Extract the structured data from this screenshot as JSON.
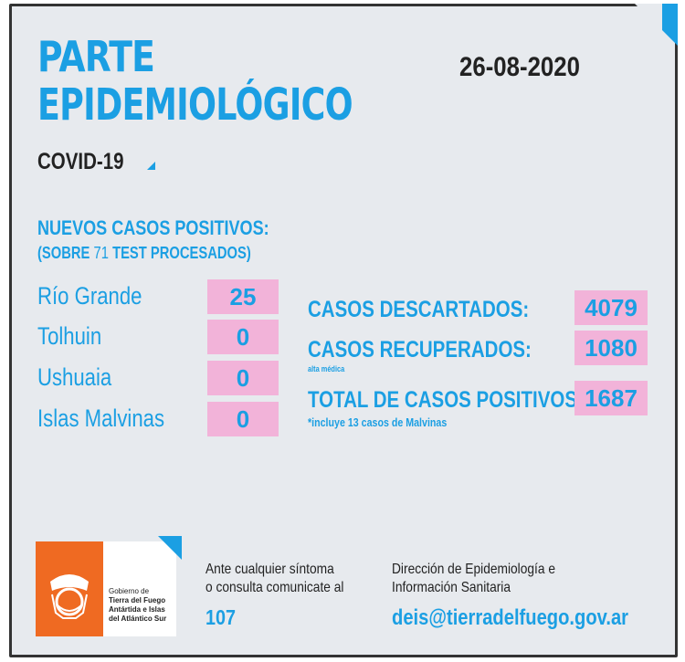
{
  "header": {
    "title_line1": "PARTE",
    "title_line2": "EPIDEMIOLÓGICO",
    "date": "26-08-2020",
    "subtitle": "COVID-19"
  },
  "nuevos": {
    "heading": "NUEVOS CASOS POSITIVOS:",
    "sub_prefix": "(SOBRE",
    "test_count": "71",
    "sub_suffix": "TEST PROCESADOS)",
    "rows": [
      {
        "label": "Río Grande",
        "value": "25"
      },
      {
        "label": "Tolhuin",
        "value": "0"
      },
      {
        "label": "Ushuaia",
        "value": "0"
      },
      {
        "label": "Islas Malvinas",
        "value": "0"
      }
    ]
  },
  "stats": {
    "descartados": {
      "label": "CASOS DESCARTADOS:",
      "value": "4079"
    },
    "recuperados": {
      "label": "CASOS RECUPERADOS:",
      "note": "alta médica",
      "value": "1080"
    },
    "total": {
      "label": "TOTAL DE CASOS POSITIVOS",
      "note": "*incluye 13 casos de Malvinas",
      "value": "1687"
    }
  },
  "footer": {
    "logo_lines": [
      "Gobierno de",
      "Tierra del Fuego",
      "Antártida e Islas",
      "del Atlántico Sur"
    ],
    "help_line1": "Ante cualquier síntoma",
    "help_line2": "o consulta comunicate al",
    "phone": "107",
    "dir_line1": "Dirección de Epidemiología e",
    "dir_line2": "Información Sanitaria",
    "email": "deis@tierradelfuego.gov.ar"
  },
  "colors": {
    "accent": "#1b9fe3",
    "box": "#f2b3d9",
    "logo": "#ef6a22",
    "background": "#e7eaee"
  }
}
